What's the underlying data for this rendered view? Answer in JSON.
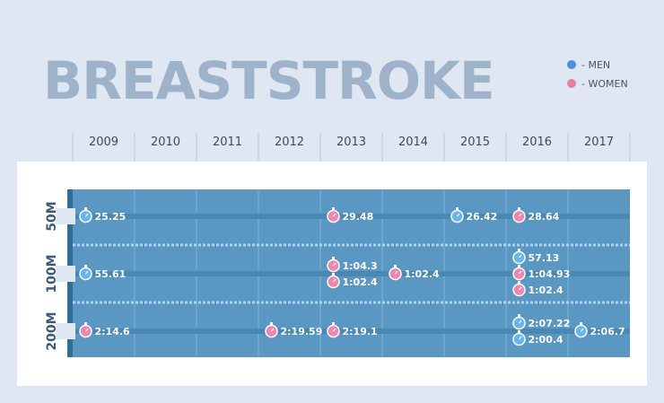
{
  "title": "BREASTSTROKE",
  "legend": [
    {
      "label": "- MEN",
      "color": "#4a90d9"
    },
    {
      "label": "- WOMEN",
      "color": "#e87fa3"
    }
  ],
  "chart_data": {
    "type": "scatter",
    "title": "BREASTSTROKE",
    "x": [
      "2009",
      "2010",
      "2011",
      "2012",
      "2013",
      "2014",
      "2015",
      "2016",
      "2017"
    ],
    "categories": [
      "50M",
      "100M",
      "200M"
    ],
    "colors": {
      "men": "#6ab4ee",
      "women": "#ef86b0"
    },
    "series": [
      {
        "name": "MEN",
        "points": [
          {
            "year": "2009",
            "event": "50M",
            "label": "25.25"
          },
          {
            "year": "2015",
            "event": "50M",
            "label": "26.42"
          },
          {
            "year": "2009",
            "event": "100M",
            "label": "55.61"
          },
          {
            "year": "2016",
            "event": "100M",
            "label": "57.13"
          },
          {
            "year": "2016",
            "event": "200M",
            "label": "2:07.22"
          },
          {
            "year": "2016",
            "event": "200M",
            "label": "2:00.4"
          },
          {
            "year": "2017",
            "event": "200M",
            "label": "2:06.7"
          }
        ]
      },
      {
        "name": "WOMEN",
        "points": [
          {
            "year": "2013",
            "event": "50M",
            "label": "29.48"
          },
          {
            "year": "2016",
            "event": "50M",
            "label": "28.64"
          },
          {
            "year": "2013",
            "event": "100M",
            "label": "1:04.3"
          },
          {
            "year": "2013",
            "event": "100M",
            "label": "1:02.4"
          },
          {
            "year": "2014",
            "event": "100M",
            "label": "1:02.4"
          },
          {
            "year": "2016",
            "event": "100M",
            "label": "1:04.93"
          },
          {
            "year": "2016",
            "event": "100M",
            "label": "1:02.4"
          },
          {
            "year": "2009",
            "event": "200M",
            "label": "2:14.6"
          },
          {
            "year": "2012",
            "event": "200M",
            "label": "2:19.59"
          },
          {
            "year": "2013",
            "event": "200M",
            "label": "2:19.1"
          }
        ]
      }
    ]
  }
}
